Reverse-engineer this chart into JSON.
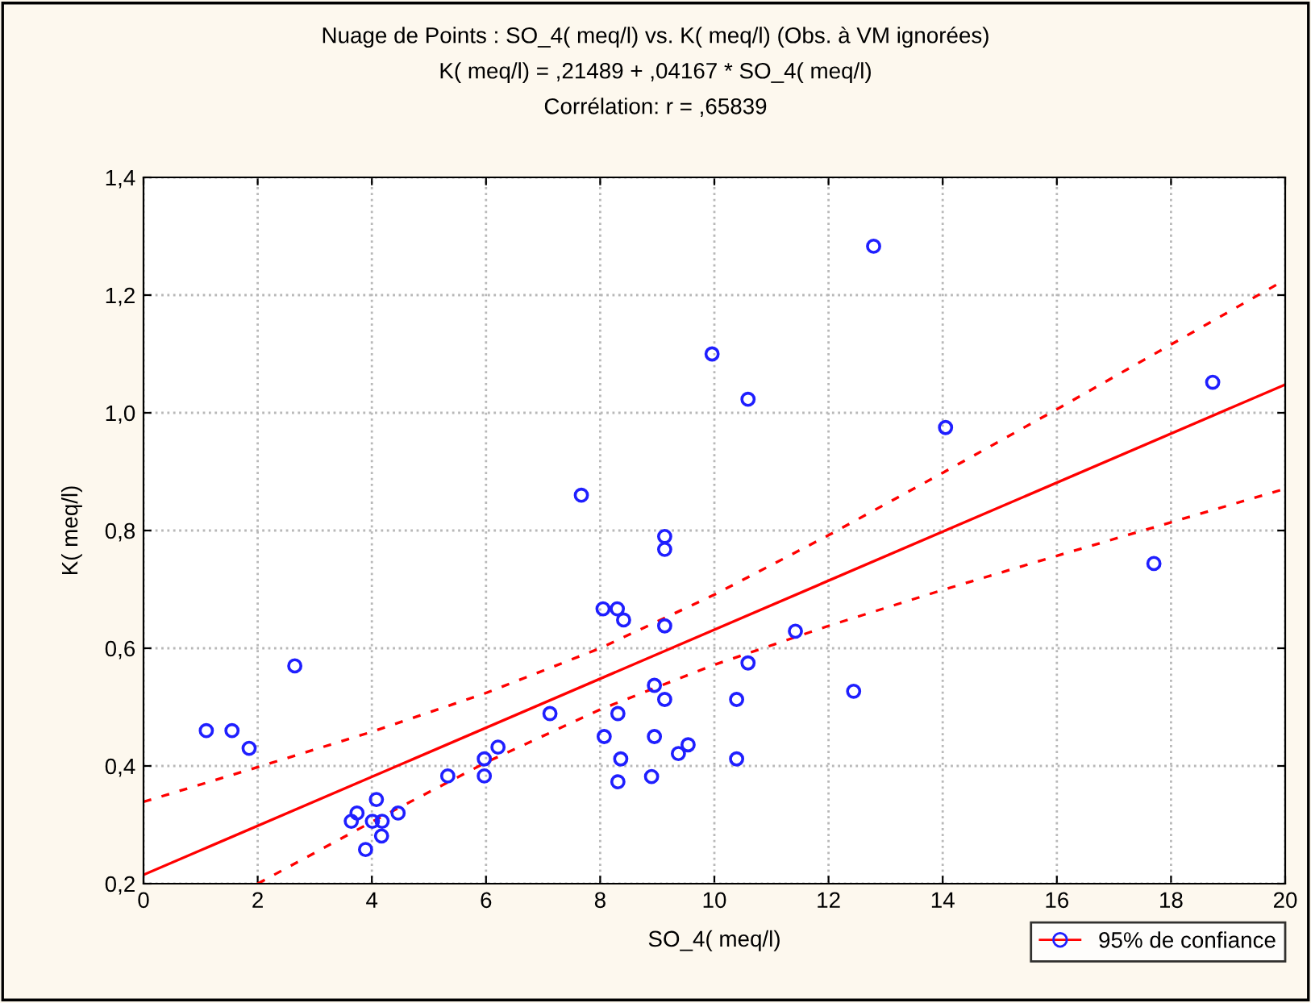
{
  "chart_data": {
    "type": "scatter",
    "title": "Nuage de Points : SO_4( meq/l) vs. K( meq/l) (Obs. à VM ignorées)\nK( meq/l) = ,21489 + ,04167 * SO_4( meq/l)\nCorrélation: r = ,65839",
    "xlabel": "SO_4( meq/l)",
    "ylabel": "K( meq/l)",
    "series": [
      {
        "name": "95% de confiance",
        "color": "#1f1fff",
        "marker": "circle",
        "x": [
          1.1,
          1.55,
          1.85,
          2.65,
          3.64,
          3.74,
          3.89,
          4.01,
          4.08,
          4.17,
          4.18,
          4.46,
          5.33,
          5.97,
          5.97,
          6.21,
          7.12,
          7.67,
          8.05,
          8.07,
          8.3,
          8.31,
          8.31,
          8.36,
          8.41,
          8.9,
          8.95,
          8.95,
          9.13,
          9.13,
          9.13,
          9.13,
          9.37,
          9.54,
          9.96,
          10.39,
          10.39,
          10.59,
          10.59,
          11.42,
          12.44,
          12.79,
          14.05,
          17.7,
          18.73
        ],
        "values": [
          0.46,
          0.46,
          0.43,
          0.57,
          0.306,
          0.32,
          0.258,
          0.306,
          0.343,
          0.281,
          0.306,
          0.32,
          0.383,
          0.383,
          0.412,
          0.432,
          0.489,
          0.86,
          0.667,
          0.45,
          0.667,
          0.489,
          0.373,
          0.412,
          0.648,
          0.382,
          0.537,
          0.45,
          0.638,
          0.79,
          0.768,
          0.513,
          0.421,
          0.436,
          1.1,
          0.513,
          0.412,
          0.575,
          1.023,
          0.629,
          0.527,
          1.283,
          0.975,
          0.744,
          1.052
        ]
      },
      {
        "type": "line",
        "color": "#ff0000",
        "line_style": "solid",
        "x": [
          0,
          20
        ],
        "values": [
          0.215,
          1.048
        ]
      },
      {
        "type": "line",
        "color": "#ff0000",
        "line_style": "dashed",
        "x": [
          0,
          2,
          4,
          6,
          8,
          10,
          12,
          14,
          16,
          18,
          20
        ],
        "values": [
          0.339,
          0.398,
          0.458,
          0.524,
          0.6,
          0.691,
          0.792,
          0.898,
          1.006,
          1.116,
          1.226
        ]
      },
      {
        "type": "line",
        "color": "#ff0000",
        "line_style": "dashed",
        "x": [
          2,
          4,
          6,
          8,
          10,
          12,
          14,
          16,
          18,
          20
        ],
        "values": [
          0.2,
          0.305,
          0.406,
          0.496,
          0.572,
          0.638,
          0.699,
          0.757,
          0.814,
          0.871
        ]
      }
    ],
    "xlim": [
      0,
      20
    ],
    "xticks": [
      0,
      2,
      4,
      6,
      8,
      10,
      12,
      14,
      16,
      18,
      20
    ],
    "ylim": [
      0.2,
      1.4
    ],
    "yticks": [
      {
        "value": 0.2,
        "label": "0,2"
      },
      {
        "value": 0.4,
        "label": "0,4"
      },
      {
        "value": 0.6,
        "label": "0,6"
      },
      {
        "value": 0.8,
        "label": "0,8"
      },
      {
        "value": 1.0,
        "label": "1,0"
      },
      {
        "value": 1.2,
        "label": "1,2"
      },
      {
        "value": 1.4,
        "label": "1,4"
      }
    ],
    "grid": true,
    "legend": "bottom right"
  }
}
